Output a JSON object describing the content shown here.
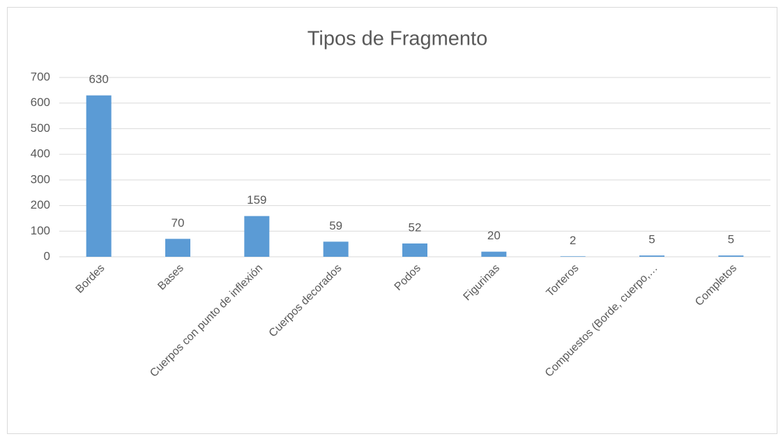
{
  "chart_data": {
    "type": "bar",
    "title": "Tipos de Fragmento",
    "categories": [
      "Bordes",
      "Bases",
      "Cuerpos con punto de inflexión",
      "Cuerpos decorados",
      "Podos",
      "Figurinas",
      "Torteros",
      "Compuestos (Borde, cuerpo,…",
      "Completos"
    ],
    "values": [
      630,
      70,
      159,
      59,
      52,
      20,
      2,
      5,
      5
    ],
    "color": "#5b9bd5",
    "ylim": [
      0,
      700
    ],
    "yticks": [
      0,
      100,
      200,
      300,
      400,
      500,
      600,
      700
    ],
    "grid": true
  }
}
